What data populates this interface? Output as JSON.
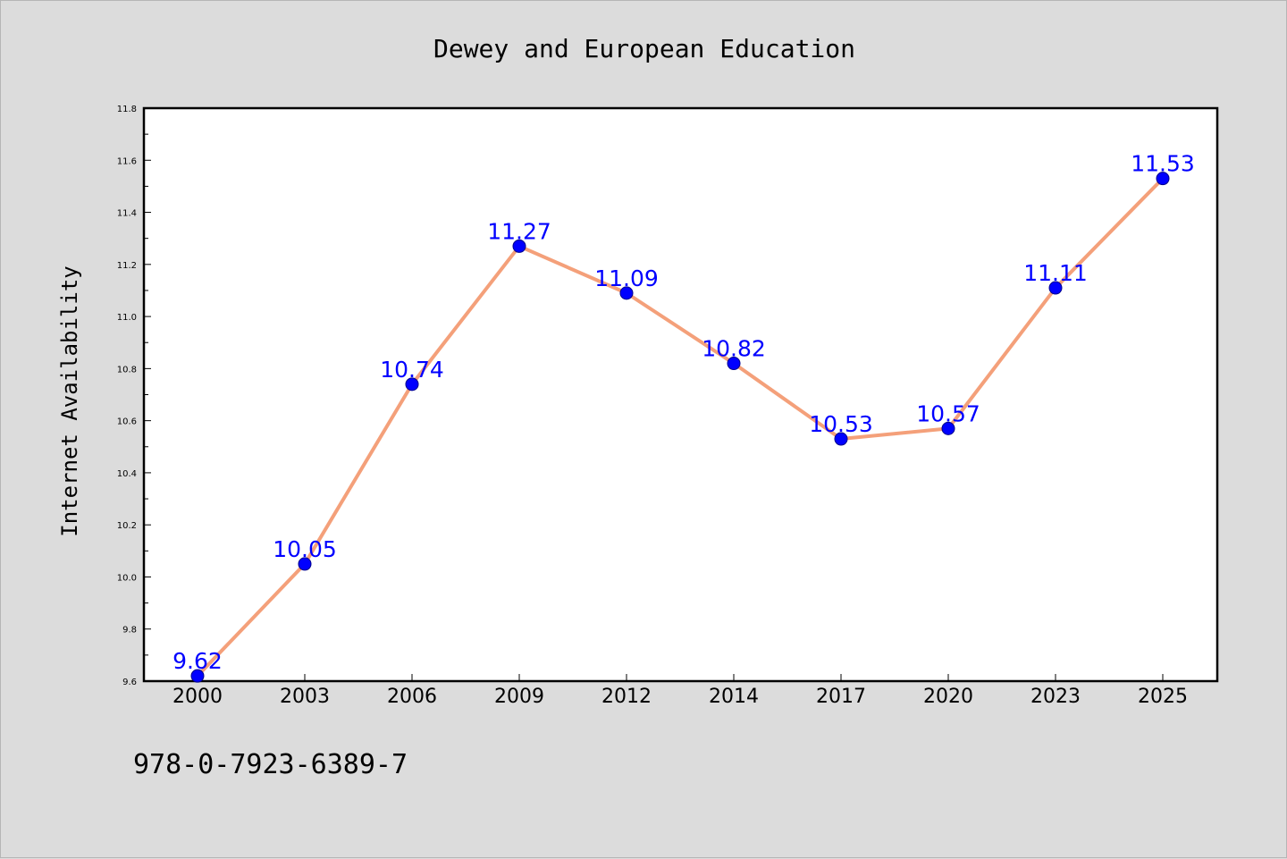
{
  "chart_data": {
    "type": "line",
    "title": "Dewey and European Education",
    "xlabel": "",
    "ylabel": "Internet Availability",
    "categories": [
      "2000",
      "2003",
      "2006",
      "2009",
      "2012",
      "2014",
      "2017",
      "2020",
      "2023",
      "2025"
    ],
    "series": [
      {
        "values": [
          9.62,
          10.05,
          10.74,
          11.27,
          11.09,
          10.82,
          10.53,
          10.57,
          11.11,
          11.53
        ],
        "data_labels": [
          "9.62",
          "10.05",
          "10.74",
          "11.27",
          "11.09",
          "10.82",
          "10.53",
          "10.57",
          "11.11",
          "11.53"
        ],
        "line_color": "#f4a07a",
        "marker_color": "#0000ff"
      }
    ],
    "ylim": [
      9.6,
      11.8
    ],
    "yticks": [
      "9.6",
      "9.8",
      "10.0",
      "10.2",
      "10.4",
      "10.6",
      "10.8",
      "11.0",
      "11.2",
      "11.4",
      "11.6",
      "11.8"
    ],
    "grid": false,
    "legend": "none"
  },
  "footnote": "978-0-7923-6389-7",
  "colors": {
    "background": "#dcdcdc",
    "plot_background": "#ffffff",
    "line": "#f4a07a",
    "marker": "#0000ff",
    "data_label": "#0000ff"
  }
}
